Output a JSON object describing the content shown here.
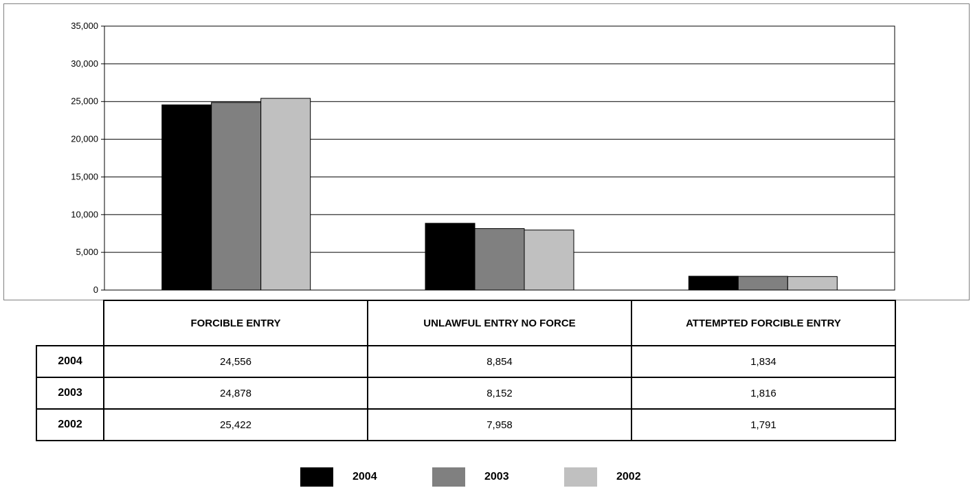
{
  "chart_data": {
    "type": "bar",
    "categories": [
      "FORCIBLE ENTRY",
      "UNLAWFUL ENTRY NO FORCE",
      "ATTEMPTED FORCIBLE ENTRY"
    ],
    "series": [
      {
        "name": "2004",
        "values": [
          24556,
          8854,
          1834
        ],
        "color": "#000000"
      },
      {
        "name": "2003",
        "values": [
          24878,
          8152,
          1816
        ],
        "color": "#808080"
      },
      {
        "name": "2002",
        "values": [
          25422,
          7958,
          1791
        ],
        "color": "#c0c0c0"
      }
    ],
    "ylim": [
      0,
      35000
    ],
    "yticks": [
      0,
      5000,
      10000,
      15000,
      20000,
      25000,
      30000,
      35000
    ],
    "ytick_labels": [
      "0",
      "5,000",
      "10,000",
      "15,000",
      "20,000",
      "25,000",
      "30,000",
      "35,000"
    ],
    "grid": true,
    "legend_position": "bottom-center"
  },
  "table": {
    "headers": [
      "FORCIBLE ENTRY",
      "UNLAWFUL ENTRY NO FORCE",
      "ATTEMPTED FORCIBLE ENTRY"
    ],
    "rows": [
      {
        "label": "2004",
        "cells": [
          "24,556",
          "8,854",
          "1,834"
        ]
      },
      {
        "label": "2003",
        "cells": [
          "24,878",
          "8,152",
          "1,816"
        ]
      },
      {
        "label": "2002",
        "cells": [
          "25,422",
          "7,958",
          "1,791"
        ]
      }
    ]
  },
  "legend": [
    {
      "label": "2004",
      "color": "#000000"
    },
    {
      "label": "2003",
      "color": "#808080"
    },
    {
      "label": "2002",
      "color": "#c0c0c0"
    }
  ]
}
